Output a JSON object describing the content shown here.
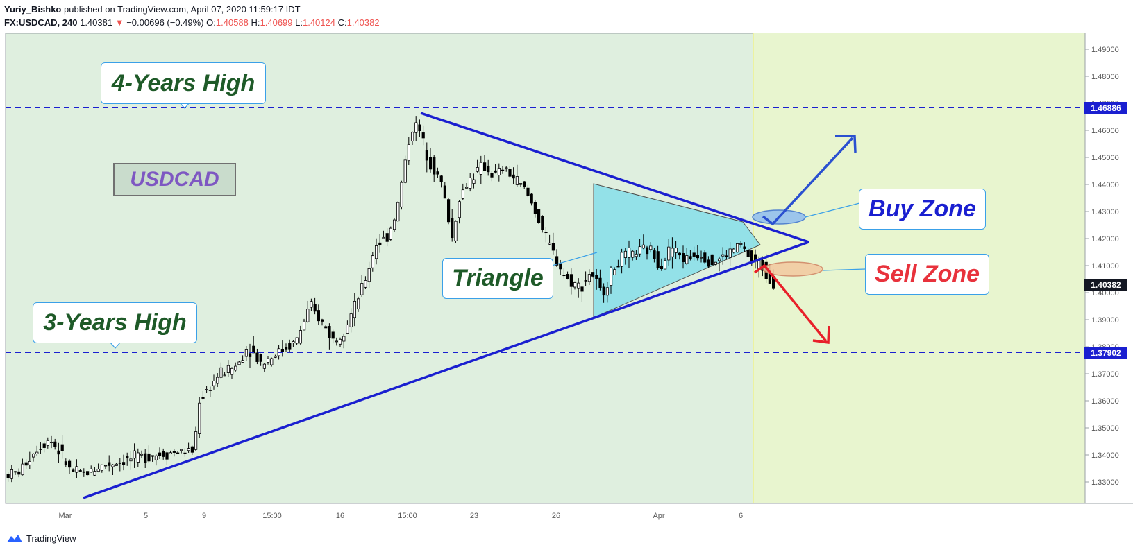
{
  "header": {
    "author": "Yuriy_Bishko",
    "published": "published on TradingView.com, April 07, 2020 11:59:17 IDT",
    "symbol": "FX:USDCAD, 240",
    "price": "1.40381",
    "change": "−0.00696 (−0.49%)",
    "o_label": "O:",
    "o": "1.40588",
    "h_label": "H:",
    "h": "1.40699",
    "l_label": "L:",
    "l": "1.40124",
    "c_label": "C:",
    "c": "1.40382",
    "down_arrow_icon": "triangle-down-icon"
  },
  "footer": {
    "brand": "TradingView",
    "logo_icon": "tradingview-cloud-icon"
  },
  "annotations": {
    "four_years_high": "4-Years High",
    "three_years_high": "3-Years High",
    "symbol_box": "USDCAD",
    "triangle": "Triangle",
    "buy_zone": "Buy Zone",
    "sell_zone": "Sell Zone"
  },
  "price_tags": {
    "level_high": "1.46886",
    "level_low": "1.37902",
    "last": "1.40382"
  },
  "colors": {
    "chart_bg": "#dfefdf",
    "forecast_bg": "#e8f5cf",
    "trendline": "#1a1fd0",
    "level_line": "#1a1fd0",
    "triangle_fill": "#86dfea",
    "sell_arrow": "#e8202a",
    "buy_arrow": "#2a50d0"
  },
  "chart_data": {
    "type": "candlestick",
    "y_ticks": [
      "1.49000",
      "1.48000",
      "1.47000",
      "1.46000",
      "1.45000",
      "1.44000",
      "1.43000",
      "1.42000",
      "1.41000",
      "1.40000",
      "1.39000",
      "1.38000",
      "1.37000",
      "1.36000",
      "1.35000",
      "1.34000",
      "1.33000"
    ],
    "x_ticks": [
      "Mar",
      "5",
      "9",
      "15:00",
      "16",
      "15:00",
      "23",
      "26",
      "Apr",
      "6"
    ],
    "ylim": [
      1.3222,
      1.4945
    ],
    "levels": [
      1.46886,
      1.37902
    ],
    "last_price": 1.40382
  }
}
